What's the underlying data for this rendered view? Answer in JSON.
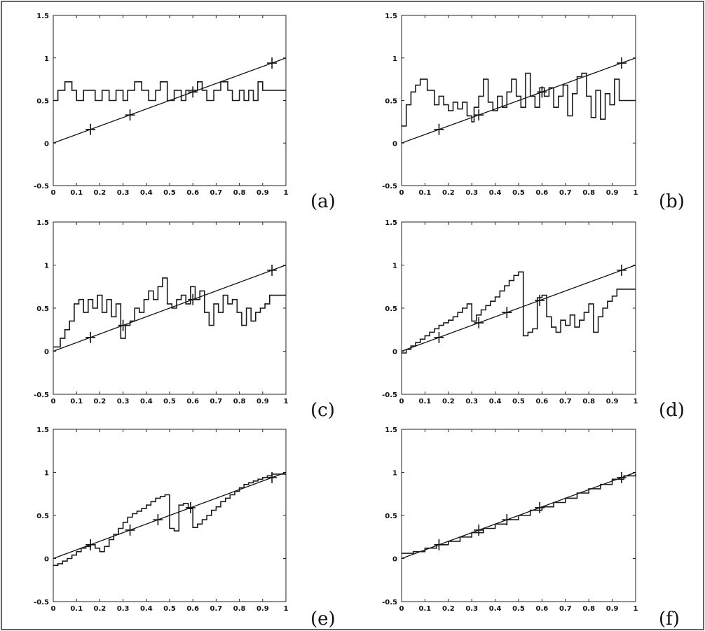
{
  "figure": {
    "panel_labels": [
      "(a)",
      "(b)",
      "(c)",
      "(d)",
      "(e)",
      "(f)"
    ]
  },
  "chart_data": [
    {
      "panel": "(a)",
      "type": "line",
      "title": "",
      "xlabel": "",
      "ylabel": "",
      "xlim": [
        0,
        1
      ],
      "ylim": [
        -0.5,
        1.5
      ],
      "xticks": [
        "0",
        "0.1",
        "0.2",
        "0.3",
        "0.4",
        "0.5",
        "0.6",
        "0.7",
        "0.8",
        "0.9",
        "1"
      ],
      "yticks": [
        "-0.5",
        "0",
        "0.5",
        "1",
        "1.5"
      ],
      "reference_line": {
        "x": [
          0,
          1
        ],
        "y": [
          0,
          1
        ]
      },
      "markers": {
        "x": [
          0.16,
          0.33,
          0.6,
          0.94
        ],
        "y": [
          0.16,
          0.33,
          0.6,
          0.94
        ]
      },
      "series": [
        {
          "x": [
            0,
            0.02,
            0.05,
            0.08,
            0.1,
            0.13,
            0.16,
            0.18,
            0.21,
            0.24,
            0.27,
            0.3,
            0.32,
            0.35,
            0.38,
            0.41,
            0.44,
            0.46,
            0.49,
            0.52,
            0.55,
            0.57,
            0.6,
            0.62,
            0.64,
            0.66,
            0.69,
            0.72,
            0.75,
            0.77,
            0.8,
            0.82,
            0.84,
            0.86,
            0.88,
            0.9,
            0.92,
            0.95,
            1
          ],
          "y": [
            0.5,
            0.62,
            0.72,
            0.62,
            0.5,
            0.62,
            0.62,
            0.5,
            0.62,
            0.5,
            0.62,
            0.5,
            0.62,
            0.72,
            0.62,
            0.5,
            0.62,
            0.72,
            0.5,
            0.62,
            0.5,
            0.62,
            0.62,
            0.72,
            0.62,
            0.5,
            0.62,
            0.72,
            0.62,
            0.5,
            0.62,
            0.5,
            0.62,
            0.5,
            0.72,
            0.62,
            0.62,
            0.62,
            0.62
          ]
        }
      ]
    },
    {
      "panel": "(b)",
      "type": "line",
      "title": "",
      "xlabel": "",
      "ylabel": "",
      "xlim": [
        0,
        1
      ],
      "ylim": [
        -0.5,
        1.5
      ],
      "xticks": [
        "0",
        "0.1",
        "0.2",
        "0.3",
        "0.4",
        "0.5",
        "0.6",
        "0.7",
        "0.8",
        "0.9",
        "1"
      ],
      "yticks": [
        "-0.5",
        "0",
        "0.5",
        "1",
        "1.5"
      ],
      "reference_line": {
        "x": [
          0,
          1
        ],
        "y": [
          0,
          1
        ]
      },
      "markers": {
        "x": [
          0.16,
          0.33,
          0.6,
          0.94
        ],
        "y": [
          0.16,
          0.33,
          0.6,
          0.94
        ]
      },
      "series": [
        {
          "x": [
            0,
            0.02,
            0.04,
            0.06,
            0.08,
            0.11,
            0.14,
            0.16,
            0.18,
            0.2,
            0.22,
            0.24,
            0.26,
            0.28,
            0.3,
            0.31,
            0.33,
            0.35,
            0.37,
            0.39,
            0.41,
            0.43,
            0.45,
            0.47,
            0.49,
            0.51,
            0.53,
            0.55,
            0.57,
            0.59,
            0.61,
            0.63,
            0.65,
            0.67,
            0.69,
            0.71,
            0.73,
            0.75,
            0.77,
            0.79,
            0.81,
            0.83,
            0.85,
            0.87,
            0.89,
            0.91,
            0.93,
            0.95,
            1
          ],
          "y": [
            0.2,
            0.45,
            0.6,
            0.68,
            0.75,
            0.62,
            0.45,
            0.55,
            0.45,
            0.38,
            0.48,
            0.4,
            0.48,
            0.32,
            0.25,
            0.42,
            0.55,
            0.75,
            0.48,
            0.38,
            0.55,
            0.42,
            0.6,
            0.75,
            0.55,
            0.42,
            0.82,
            0.55,
            0.42,
            0.65,
            0.55,
            0.65,
            0.42,
            0.55,
            0.68,
            0.32,
            0.58,
            0.78,
            0.82,
            0.55,
            0.3,
            0.62,
            0.28,
            0.58,
            0.45,
            0.75,
            0.5,
            0.5,
            0.5
          ]
        }
      ]
    },
    {
      "panel": "(c)",
      "type": "line",
      "title": "",
      "xlabel": "",
      "ylabel": "",
      "xlim": [
        0,
        1
      ],
      "ylim": [
        -0.5,
        1.5
      ],
      "xticks": [
        "0",
        "0.1",
        "0.2",
        "0.3",
        "0.4",
        "0.5",
        "0.6",
        "0.7",
        "0.8",
        "0.9",
        "1"
      ],
      "yticks": [
        "-0.5",
        "0",
        "0.5",
        "1",
        "1.5"
      ],
      "reference_line": {
        "x": [
          0,
          1
        ],
        "y": [
          0,
          1
        ]
      },
      "markers": {
        "x": [
          0.16,
          0.3,
          0.6,
          0.94
        ],
        "y": [
          0.16,
          0.3,
          0.6,
          0.94
        ]
      },
      "series": [
        {
          "x": [
            0,
            0.03,
            0.05,
            0.07,
            0.09,
            0.11,
            0.13,
            0.15,
            0.17,
            0.19,
            0.21,
            0.23,
            0.25,
            0.27,
            0.29,
            0.31,
            0.33,
            0.35,
            0.37,
            0.39,
            0.41,
            0.43,
            0.45,
            0.47,
            0.49,
            0.51,
            0.53,
            0.55,
            0.57,
            0.59,
            0.61,
            0.63,
            0.65,
            0.67,
            0.69,
            0.71,
            0.73,
            0.75,
            0.77,
            0.79,
            0.81,
            0.83,
            0.85,
            0.87,
            0.89,
            0.91,
            0.93,
            0.95,
            1
          ],
          "y": [
            0.05,
            0.15,
            0.25,
            0.35,
            0.55,
            0.6,
            0.45,
            0.6,
            0.5,
            0.65,
            0.45,
            0.6,
            0.4,
            0.55,
            0.15,
            0.3,
            0.35,
            0.5,
            0.45,
            0.6,
            0.7,
            0.6,
            0.75,
            0.85,
            0.55,
            0.5,
            0.6,
            0.65,
            0.55,
            0.75,
            0.6,
            0.7,
            0.45,
            0.3,
            0.55,
            0.45,
            0.65,
            0.55,
            0.6,
            0.45,
            0.3,
            0.5,
            0.35,
            0.45,
            0.5,
            0.55,
            0.65,
            0.65,
            0.65
          ]
        }
      ]
    },
    {
      "panel": "(d)",
      "type": "line",
      "title": "",
      "xlabel": "",
      "ylabel": "",
      "xlim": [
        0,
        1
      ],
      "ylim": [
        -0.5,
        1.5
      ],
      "xticks": [
        "0",
        "0.1",
        "0.2",
        "0.3",
        "0.4",
        "0.5",
        "0.6",
        "0.7",
        "0.8",
        "0.9",
        "1"
      ],
      "yticks": [
        "-0.5",
        "0",
        "0.5",
        "1",
        "1.5"
      ],
      "reference_line": {
        "x": [
          0,
          1
        ],
        "y": [
          0,
          1
        ]
      },
      "markers": {
        "x": [
          0.16,
          0.33,
          0.45,
          0.59,
          0.94
        ],
        "y": [
          0.16,
          0.33,
          0.45,
          0.59,
          0.94
        ]
      },
      "series": [
        {
          "x": [
            0,
            0.02,
            0.04,
            0.06,
            0.08,
            0.1,
            0.12,
            0.14,
            0.16,
            0.18,
            0.2,
            0.22,
            0.24,
            0.26,
            0.28,
            0.3,
            0.32,
            0.34,
            0.36,
            0.38,
            0.4,
            0.42,
            0.44,
            0.46,
            0.48,
            0.5,
            0.52,
            0.54,
            0.56,
            0.58,
            0.6,
            0.62,
            0.64,
            0.66,
            0.68,
            0.7,
            0.72,
            0.74,
            0.76,
            0.78,
            0.8,
            0.82,
            0.84,
            0.86,
            0.88,
            0.9,
            0.92,
            0.94,
            0.96,
            1
          ],
          "y": [
            -0.02,
            0.02,
            0.06,
            0.1,
            0.14,
            0.18,
            0.22,
            0.26,
            0.3,
            0.33,
            0.36,
            0.4,
            0.45,
            0.5,
            0.55,
            0.35,
            0.42,
            0.48,
            0.53,
            0.58,
            0.63,
            0.7,
            0.76,
            0.82,
            0.88,
            0.92,
            0.18,
            0.22,
            0.26,
            0.62,
            0.65,
            0.4,
            0.28,
            0.22,
            0.36,
            0.3,
            0.42,
            0.28,
            0.36,
            0.45,
            0.55,
            0.22,
            0.4,
            0.5,
            0.58,
            0.64,
            0.72,
            0.72,
            0.72,
            0.72
          ]
        }
      ]
    },
    {
      "panel": "(e)",
      "type": "line",
      "title": "",
      "xlabel": "",
      "ylabel": "",
      "xlim": [
        0,
        1
      ],
      "ylim": [
        -0.5,
        1.5
      ],
      "xticks": [
        "0",
        "0.1",
        "0.2",
        "0.3",
        "0.4",
        "0.5",
        "0.6",
        "0.7",
        "0.8",
        "0.9",
        "1"
      ],
      "yticks": [
        "-0.5",
        "0",
        "0.5",
        "1",
        "1.5"
      ],
      "reference_line": {
        "x": [
          0,
          1
        ],
        "y": [
          0,
          1
        ]
      },
      "markers": {
        "x": [
          0.16,
          0.33,
          0.45,
          0.59,
          0.94
        ],
        "y": [
          0.16,
          0.33,
          0.45,
          0.59,
          0.94
        ]
      },
      "series": [
        {
          "x": [
            0,
            0.02,
            0.04,
            0.06,
            0.08,
            0.1,
            0.12,
            0.14,
            0.16,
            0.18,
            0.2,
            0.22,
            0.24,
            0.26,
            0.28,
            0.3,
            0.32,
            0.34,
            0.36,
            0.38,
            0.4,
            0.42,
            0.44,
            0.46,
            0.48,
            0.5,
            0.52,
            0.54,
            0.56,
            0.58,
            0.6,
            0.62,
            0.64,
            0.66,
            0.68,
            0.7,
            0.72,
            0.74,
            0.76,
            0.78,
            0.8,
            0.82,
            0.84,
            0.86,
            0.88,
            0.9,
            0.92,
            0.94,
            0.96,
            1
          ],
          "y": [
            -0.08,
            -0.06,
            -0.03,
            0,
            0.04,
            0.08,
            0.12,
            0.14,
            0.16,
            0.12,
            0.08,
            0.14,
            0.22,
            0.28,
            0.35,
            0.42,
            0.48,
            0.52,
            0.55,
            0.58,
            0.62,
            0.66,
            0.7,
            0.72,
            0.74,
            0.35,
            0.32,
            0.62,
            0.64,
            0.58,
            0.36,
            0.4,
            0.45,
            0.5,
            0.56,
            0.6,
            0.66,
            0.7,
            0.74,
            0.78,
            0.82,
            0.86,
            0.88,
            0.9,
            0.92,
            0.94,
            0.96,
            0.98,
            0.98,
            0.98
          ]
        }
      ]
    },
    {
      "panel": "(f)",
      "type": "line",
      "title": "",
      "xlabel": "",
      "ylabel": "",
      "xlim": [
        0,
        1
      ],
      "ylim": [
        -0.5,
        1.5
      ],
      "xticks": [
        "0",
        "0.1",
        "0.2",
        "0.3",
        "0.4",
        "0.5",
        "0.6",
        "0.7",
        "0.8",
        "0.9",
        "1"
      ],
      "yticks": [
        "-0.5",
        "0",
        "0.5",
        "1",
        "1.5"
      ],
      "reference_line": {
        "x": [
          0,
          1
        ],
        "y": [
          0,
          1
        ]
      },
      "markers": {
        "x": [
          0.16,
          0.33,
          0.45,
          0.59,
          0.94
        ],
        "y": [
          0.16,
          0.33,
          0.45,
          0.59,
          0.94
        ]
      },
      "series": [
        {
          "x": [
            0,
            0.05,
            0.1,
            0.15,
            0.2,
            0.25,
            0.3,
            0.35,
            0.4,
            0.45,
            0.5,
            0.55,
            0.6,
            0.65,
            0.7,
            0.75,
            0.8,
            0.85,
            0.9,
            0.95,
            1
          ],
          "y": [
            0.06,
            0.08,
            0.12,
            0.16,
            0.2,
            0.25,
            0.3,
            0.35,
            0.4,
            0.45,
            0.5,
            0.56,
            0.6,
            0.65,
            0.7,
            0.76,
            0.81,
            0.86,
            0.92,
            0.96,
            0.98
          ]
        }
      ]
    }
  ]
}
